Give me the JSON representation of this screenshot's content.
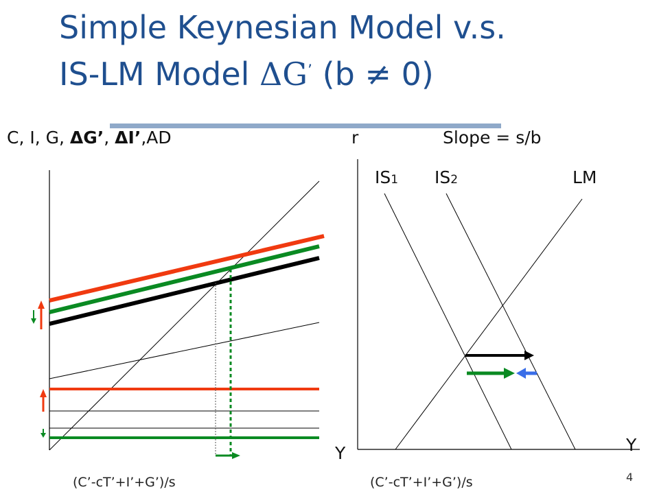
{
  "title": {
    "line1": "Simple Keynesian Model v.s.",
    "line2_prefix": "IS-LM Model ",
    "delta_g": "ΔG",
    "apostrophe": "’",
    "line2_suffix": " (b ≠ 0)"
  },
  "left_panel": {
    "yaxis_label_prefix": "C, I, G, ",
    "delta_g_prime": "ΔG’",
    "sep": ", ",
    "delta_i_prime": "ΔI’",
    "yaxis_label_suffix": ",AD",
    "xaxis_label": "Y",
    "xaxis_annotation": "(C’-cT’+I’+G’)/s"
  },
  "right_panel": {
    "yaxis_label": "r",
    "slope_label": "Slope = s/b",
    "is1_label": "IS",
    "is1_sub": "1",
    "is2_label": "IS",
    "is2_sub": "2",
    "lm_label": "LM",
    "xaxis_label": "Y",
    "xaxis_annotation": "(C’-cT’+I’+G’)/s"
  },
  "page_number": "4",
  "colors": {
    "title": "#1f4f8f",
    "header_bar": "#8fa9c9",
    "red": "#f03a10",
    "green": "#0a8a22",
    "black": "#000000",
    "blue": "#3a6ee8"
  }
}
